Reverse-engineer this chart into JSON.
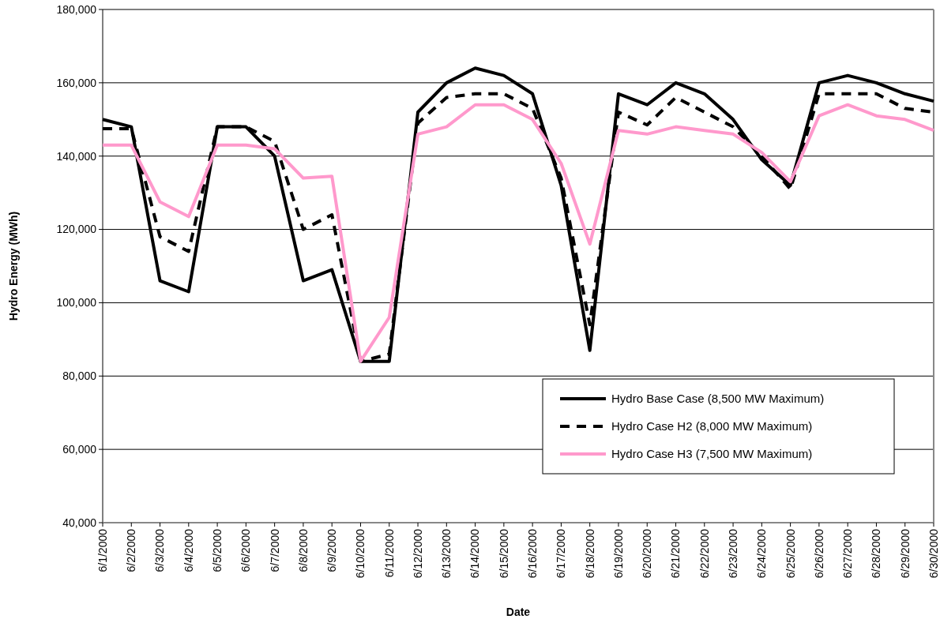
{
  "chart_data": {
    "type": "line",
    "xlabel": "Date",
    "ylabel": "Hydro Energy (MWh)",
    "categories": [
      "6/1/2000",
      "6/2/2000",
      "6/3/2000",
      "6/4/2000",
      "6/5/2000",
      "6/6/2000",
      "6/7/2000",
      "6/8/2000",
      "6/9/2000",
      "6/10/2000",
      "6/11/2000",
      "6/12/2000",
      "6/13/2000",
      "6/14/2000",
      "6/15/2000",
      "6/16/2000",
      "6/17/2000",
      "6/18/2000",
      "6/19/2000",
      "6/20/2000",
      "6/21/2000",
      "6/22/2000",
      "6/23/2000",
      "6/24/2000",
      "6/25/2000",
      "6/26/2000",
      "6/27/2000",
      "6/28/2000",
      "6/29/2000",
      "6/30/2000"
    ],
    "series": [
      {
        "name": "Hydro Base Case (8,500 MW Maximum)",
        "color": "#000000",
        "line_style": "solid",
        "values": [
          150000,
          148000,
          106000,
          103000,
          148000,
          148000,
          140000,
          106000,
          109000,
          84000,
          84000,
          152000,
          160000,
          164000,
          162000,
          157000,
          132000,
          87000,
          157000,
          154000,
          160000,
          157000,
          150000,
          139000,
          132000,
          160000,
          162000,
          160000,
          157000,
          155000
        ]
      },
      {
        "name": "Hydro Case H2 (8,000 MW Maximum)",
        "color": "#000000",
        "line_style": "dashed",
        "values": [
          147500,
          147500,
          118000,
          114000,
          148000,
          148000,
          144000,
          120000,
          124000,
          84000,
          86000,
          149000,
          156000,
          157000,
          157000,
          153000,
          134000,
          94000,
          152000,
          148500,
          156000,
          152000,
          148000,
          140000,
          131000,
          157000,
          157000,
          157000,
          153000,
          152000
        ]
      },
      {
        "name": "Hydro Case H3 (7,500 MW Maximum)",
        "color": "#ff99cc",
        "line_style": "solid",
        "values": [
          143000,
          143000,
          127500,
          123500,
          143000,
          143000,
          142000,
          134000,
          134500,
          84000,
          96000,
          146000,
          148000,
          154000,
          154000,
          150000,
          138000,
          116000,
          147000,
          146000,
          148000,
          147000,
          146000,
          141000,
          133000,
          151000,
          154000,
          151000,
          150000,
          147000
        ]
      }
    ],
    "ylim": [
      40000,
      180000
    ],
    "yticks": [
      {
        "value": 40000,
        "label": "40,000"
      },
      {
        "value": 60000,
        "label": "60,000"
      },
      {
        "value": 80000,
        "label": "80,000"
      },
      {
        "value": 100000,
        "label": "100,000"
      },
      {
        "value": 120000,
        "label": "120,000"
      },
      {
        "value": 140000,
        "label": "140,000"
      },
      {
        "value": 160000,
        "label": "160,000"
      },
      {
        "value": 180000,
        "label": "180,000"
      }
    ],
    "grid": "y",
    "legend": "bottom right",
    "marker": "none"
  }
}
